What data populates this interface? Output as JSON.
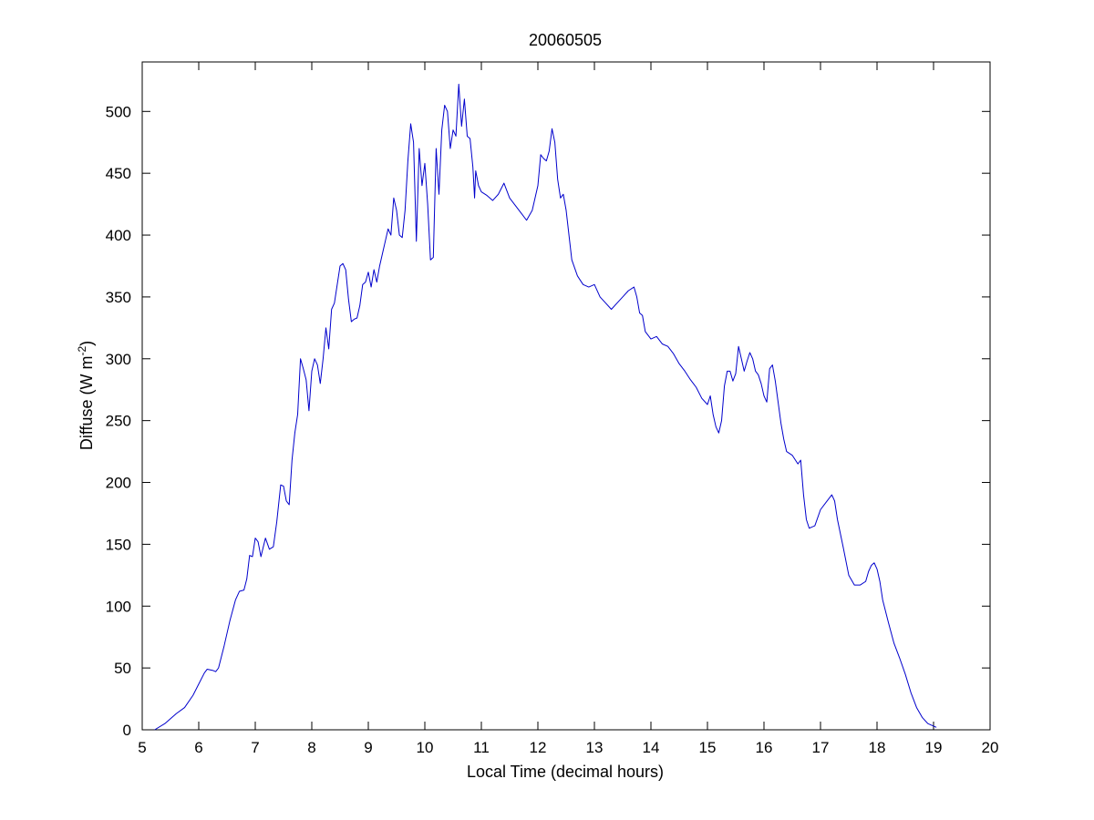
{
  "chart_data": {
    "type": "line",
    "title": "20060505",
    "xlabel": "Local Time (decimal hours)",
    "ylabel_main": "Diffuse (W m",
    "ylabel_sup": "-2",
    "ylabel_end": ")",
    "xlim": [
      5,
      20
    ],
    "ylim": [
      0,
      540
    ],
    "xticks": [
      5,
      6,
      7,
      8,
      9,
      10,
      11,
      12,
      13,
      14,
      15,
      16,
      17,
      18,
      19,
      20
    ],
    "yticks": [
      0,
      50,
      100,
      150,
      200,
      250,
      300,
      350,
      400,
      450,
      500
    ],
    "grid": false,
    "series": [
      {
        "color": "#0000cc",
        "points": [
          [
            5.22,
            0
          ],
          [
            5.4,
            5
          ],
          [
            5.6,
            13
          ],
          [
            5.75,
            18
          ],
          [
            5.9,
            28
          ],
          [
            6.0,
            37
          ],
          [
            6.1,
            46
          ],
          [
            6.15,
            49
          ],
          [
            6.25,
            48
          ],
          [
            6.3,
            47
          ],
          [
            6.35,
            50
          ],
          [
            6.45,
            68
          ],
          [
            6.55,
            88
          ],
          [
            6.65,
            105
          ],
          [
            6.72,
            112
          ],
          [
            6.8,
            113
          ],
          [
            6.85,
            122
          ],
          [
            6.9,
            141
          ],
          [
            6.95,
            140
          ],
          [
            7.0,
            155
          ],
          [
            7.05,
            152
          ],
          [
            7.1,
            140
          ],
          [
            7.18,
            155
          ],
          [
            7.25,
            146
          ],
          [
            7.32,
            148
          ],
          [
            7.38,
            168
          ],
          [
            7.45,
            198
          ],
          [
            7.5,
            197
          ],
          [
            7.55,
            185
          ],
          [
            7.6,
            182
          ],
          [
            7.65,
            218
          ],
          [
            7.7,
            240
          ],
          [
            7.75,
            255
          ],
          [
            7.8,
            300
          ],
          [
            7.85,
            292
          ],
          [
            7.9,
            283
          ],
          [
            7.95,
            258
          ],
          [
            8.0,
            290
          ],
          [
            8.05,
            300
          ],
          [
            8.1,
            295
          ],
          [
            8.15,
            280
          ],
          [
            8.2,
            300
          ],
          [
            8.25,
            325
          ],
          [
            8.3,
            308
          ],
          [
            8.35,
            340
          ],
          [
            8.4,
            345
          ],
          [
            8.45,
            360
          ],
          [
            8.5,
            375
          ],
          [
            8.55,
            377
          ],
          [
            8.6,
            372
          ],
          [
            8.65,
            348
          ],
          [
            8.7,
            330
          ],
          [
            8.75,
            332
          ],
          [
            8.8,
            333
          ],
          [
            8.85,
            343
          ],
          [
            8.9,
            360
          ],
          [
            8.95,
            362
          ],
          [
            9.0,
            370
          ],
          [
            9.05,
            358
          ],
          [
            9.1,
            372
          ],
          [
            9.15,
            362
          ],
          [
            9.2,
            375
          ],
          [
            9.25,
            385
          ],
          [
            9.3,
            395
          ],
          [
            9.35,
            405
          ],
          [
            9.4,
            400
          ],
          [
            9.45,
            430
          ],
          [
            9.5,
            420
          ],
          [
            9.55,
            400
          ],
          [
            9.6,
            398
          ],
          [
            9.65,
            420
          ],
          [
            9.7,
            460
          ],
          [
            9.75,
            490
          ],
          [
            9.8,
            475
          ],
          [
            9.85,
            395
          ],
          [
            9.9,
            470
          ],
          [
            9.95,
            440
          ],
          [
            10.0,
            458
          ],
          [
            10.05,
            425
          ],
          [
            10.1,
            380
          ],
          [
            10.15,
            382
          ],
          [
            10.2,
            470
          ],
          [
            10.25,
            433
          ],
          [
            10.3,
            485
          ],
          [
            10.35,
            505
          ],
          [
            10.4,
            500
          ],
          [
            10.45,
            470
          ],
          [
            10.5,
            485
          ],
          [
            10.55,
            480
          ],
          [
            10.6,
            522
          ],
          [
            10.65,
            488
          ],
          [
            10.7,
            510
          ],
          [
            10.75,
            480
          ],
          [
            10.8,
            478
          ],
          [
            10.85,
            455
          ],
          [
            10.88,
            430
          ],
          [
            10.9,
            452
          ],
          [
            10.95,
            440
          ],
          [
            11.0,
            435
          ],
          [
            11.1,
            432
          ],
          [
            11.2,
            428
          ],
          [
            11.3,
            433
          ],
          [
            11.4,
            442
          ],
          [
            11.5,
            430
          ],
          [
            11.6,
            424
          ],
          [
            11.7,
            418
          ],
          [
            11.8,
            412
          ],
          [
            11.9,
            420
          ],
          [
            12.0,
            440
          ],
          [
            12.05,
            465
          ],
          [
            12.1,
            462
          ],
          [
            12.15,
            460
          ],
          [
            12.2,
            468
          ],
          [
            12.25,
            486
          ],
          [
            12.3,
            475
          ],
          [
            12.35,
            445
          ],
          [
            12.4,
            430
          ],
          [
            12.45,
            433
          ],
          [
            12.5,
            420
          ],
          [
            12.55,
            400
          ],
          [
            12.6,
            380
          ],
          [
            12.7,
            367
          ],
          [
            12.8,
            360
          ],
          [
            12.9,
            358
          ],
          [
            13.0,
            360
          ],
          [
            13.1,
            350
          ],
          [
            13.2,
            345
          ],
          [
            13.3,
            340
          ],
          [
            13.4,
            345
          ],
          [
            13.5,
            350
          ],
          [
            13.6,
            355
          ],
          [
            13.7,
            358
          ],
          [
            13.75,
            350
          ],
          [
            13.8,
            337
          ],
          [
            13.85,
            335
          ],
          [
            13.9,
            322
          ],
          [
            14.0,
            316
          ],
          [
            14.1,
            318
          ],
          [
            14.2,
            312
          ],
          [
            14.3,
            310
          ],
          [
            14.4,
            304
          ],
          [
            14.5,
            296
          ],
          [
            14.6,
            290
          ],
          [
            14.7,
            283
          ],
          [
            14.8,
            277
          ],
          [
            14.9,
            268
          ],
          [
            15.0,
            263
          ],
          [
            15.05,
            270
          ],
          [
            15.1,
            255
          ],
          [
            15.15,
            245
          ],
          [
            15.2,
            240
          ],
          [
            15.25,
            250
          ],
          [
            15.3,
            278
          ],
          [
            15.35,
            290
          ],
          [
            15.4,
            290
          ],
          [
            15.45,
            282
          ],
          [
            15.5,
            288
          ],
          [
            15.55,
            310
          ],
          [
            15.6,
            300
          ],
          [
            15.65,
            290
          ],
          [
            15.7,
            298
          ],
          [
            15.75,
            305
          ],
          [
            15.8,
            300
          ],
          [
            15.85,
            290
          ],
          [
            15.9,
            287
          ],
          [
            15.95,
            280
          ],
          [
            16.0,
            270
          ],
          [
            16.05,
            265
          ],
          [
            16.1,
            292
          ],
          [
            16.15,
            295
          ],
          [
            16.2,
            282
          ],
          [
            16.25,
            265
          ],
          [
            16.3,
            248
          ],
          [
            16.35,
            235
          ],
          [
            16.4,
            225
          ],
          [
            16.5,
            222
          ],
          [
            16.6,
            215
          ],
          [
            16.65,
            218
          ],
          [
            16.7,
            190
          ],
          [
            16.75,
            170
          ],
          [
            16.8,
            163
          ],
          [
            16.9,
            165
          ],
          [
            17.0,
            178
          ],
          [
            17.1,
            184
          ],
          [
            17.2,
            190
          ],
          [
            17.25,
            185
          ],
          [
            17.3,
            170
          ],
          [
            17.4,
            148
          ],
          [
            17.5,
            125
          ],
          [
            17.6,
            117
          ],
          [
            17.7,
            117
          ],
          [
            17.8,
            120
          ],
          [
            17.85,
            128
          ],
          [
            17.9,
            133
          ],
          [
            17.95,
            135
          ],
          [
            18.0,
            130
          ],
          [
            18.05,
            120
          ],
          [
            18.1,
            105
          ],
          [
            18.2,
            87
          ],
          [
            18.3,
            70
          ],
          [
            18.4,
            58
          ],
          [
            18.5,
            45
          ],
          [
            18.6,
            30
          ],
          [
            18.7,
            18
          ],
          [
            18.8,
            10
          ],
          [
            18.9,
            5
          ],
          [
            19.0,
            3
          ],
          [
            19.05,
            2
          ]
        ]
      }
    ]
  }
}
